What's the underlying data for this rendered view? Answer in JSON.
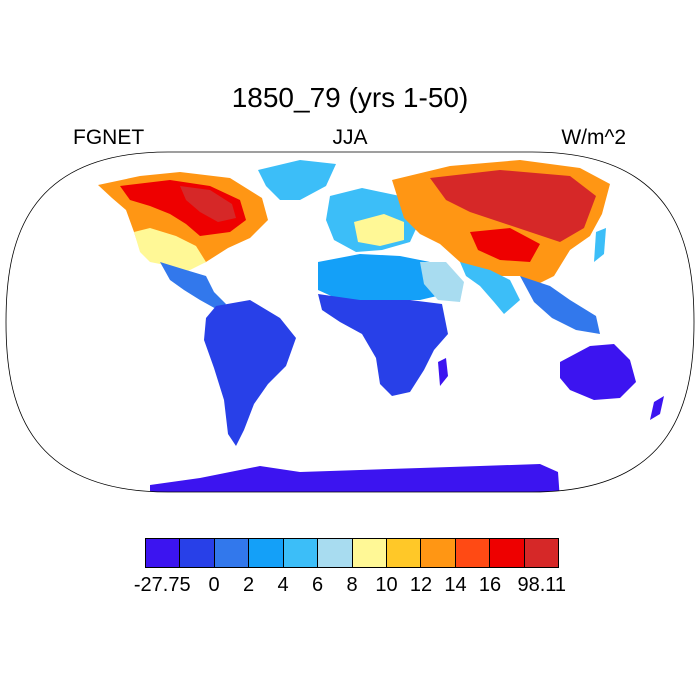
{
  "title": "1850_79 (yrs 1-50)",
  "subtitle_left": "FGNET",
  "subtitle_center": "JJA",
  "subtitle_right": "W/m^2",
  "projection": "robinson",
  "colorbar": {
    "colors": [
      "#3c14f0",
      "#2840e8",
      "#3278ec",
      "#14a0f8",
      "#3cbef8",
      "#a8dcf0",
      "#fff896",
      "#ffc828",
      "#ff9614",
      "#ff4a14",
      "#ee0000",
      "#d62828"
    ],
    "labels": [
      "-27.75",
      "0",
      "2",
      "4",
      "6",
      "8",
      "10",
      "12",
      "14",
      "16",
      "98.11"
    ]
  },
  "colors": {
    "ocean": "#ffffff",
    "coast": "#000000"
  }
}
